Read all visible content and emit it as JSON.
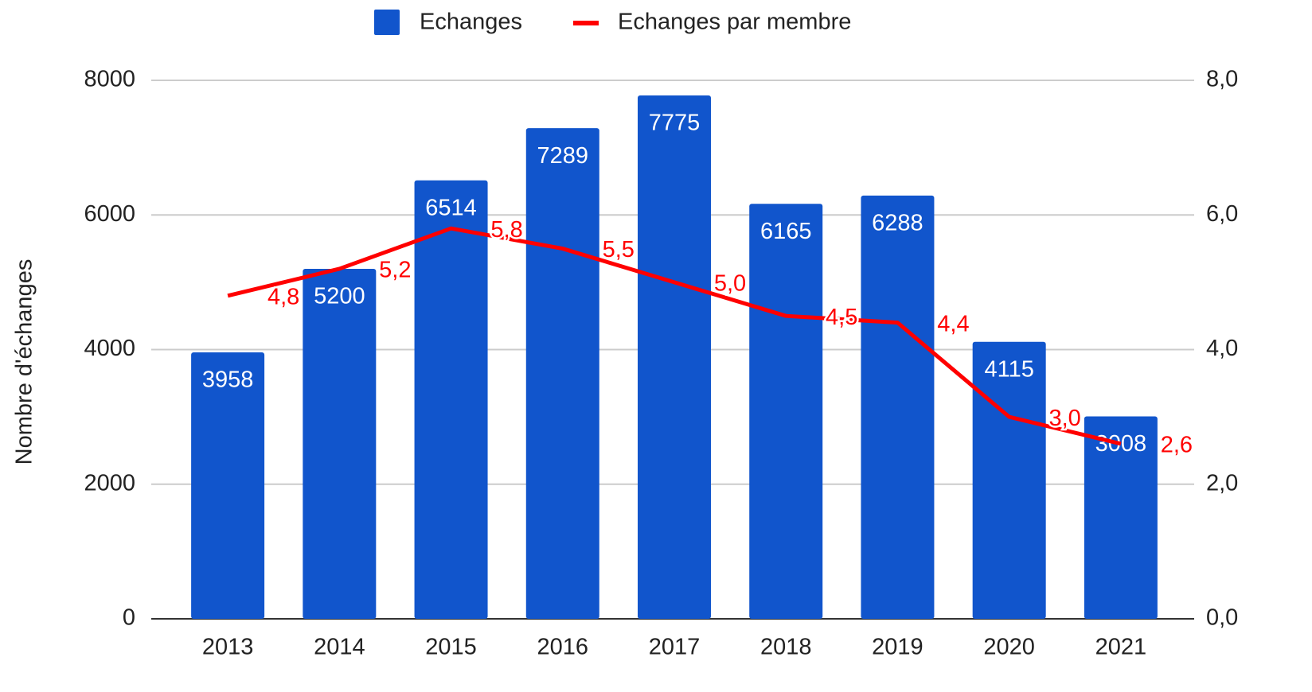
{
  "chart_data": {
    "type": "bar_line",
    "y_axis_label": "Nombre d'échanges",
    "categories": [
      "2013",
      "2014",
      "2015",
      "2016",
      "2017",
      "2018",
      "2019",
      "2020",
      "2021"
    ],
    "series": [
      {
        "name": "Echanges",
        "color": "#1155cc",
        "values": [
          3958,
          5200,
          6514,
          7289,
          7775,
          6165,
          6288,
          4115,
          3008
        ]
      },
      {
        "name": "Echanges par membre",
        "color": "#ff0000",
        "axis": "y2",
        "values": [
          4.8,
          5.2,
          5.8,
          5.5,
          5.0,
          4.5,
          4.4,
          3.0,
          2.6
        ],
        "value_labels": [
          "4,8",
          "5,2",
          "5,8",
          "5,5",
          "5,0",
          "4,5",
          "4,4",
          "3,0",
          "2,6"
        ]
      }
    ],
    "ylim": [
      0,
      8000
    ],
    "yticks": [
      0,
      2000,
      4000,
      6000,
      8000
    ],
    "y2lim": [
      0,
      8
    ],
    "y2ticks": [
      {
        "value": 0,
        "label": "0,0"
      },
      {
        "value": 2,
        "label": "2,0"
      },
      {
        "value": 4,
        "label": "4,0"
      },
      {
        "value": 6,
        "label": "6,0"
      },
      {
        "value": 8,
        "label": "8,0"
      }
    ],
    "grid": true,
    "legend": "top"
  }
}
